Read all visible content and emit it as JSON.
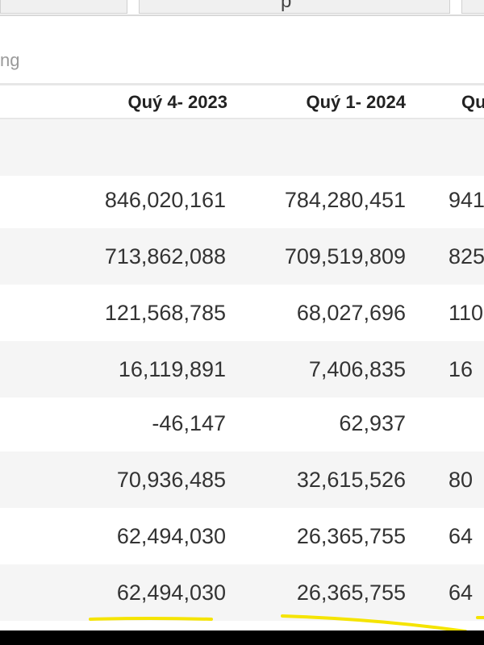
{
  "top_tab_glyph": "p",
  "partial_header_label": "ng",
  "columns": {
    "q4_2023": "Quý 4- 2023",
    "q1_2024": "Quý 1- 2024",
    "next_partial": "Qu"
  },
  "rows": [
    {
      "q4_2023": "",
      "q1_2024": "",
      "next_partial": ""
    },
    {
      "q4_2023": "846,020,161",
      "q1_2024": "784,280,451",
      "next_partial": "941"
    },
    {
      "q4_2023": "713,862,088",
      "q1_2024": "709,519,809",
      "next_partial": "825"
    },
    {
      "q4_2023": "121,568,785",
      "q1_2024": "68,027,696",
      "next_partial": "110"
    },
    {
      "q4_2023": "16,119,891",
      "q1_2024": "7,406,835",
      "next_partial": "16"
    },
    {
      "q4_2023": "-46,147",
      "q1_2024": "62,937",
      "next_partial": ""
    },
    {
      "q4_2023": "70,936,485",
      "q1_2024": "32,615,526",
      "next_partial": "80"
    },
    {
      "q4_2023": "62,494,030",
      "q1_2024": "26,365,755",
      "next_partial": "64"
    },
    {
      "q4_2023": "62,494,030",
      "q1_2024": "26,365,755",
      "next_partial": "64"
    }
  ],
  "colors": {
    "highlight_underline": "#f5e400",
    "alt_row": "#f5f5f5",
    "header_text": "#222222"
  }
}
